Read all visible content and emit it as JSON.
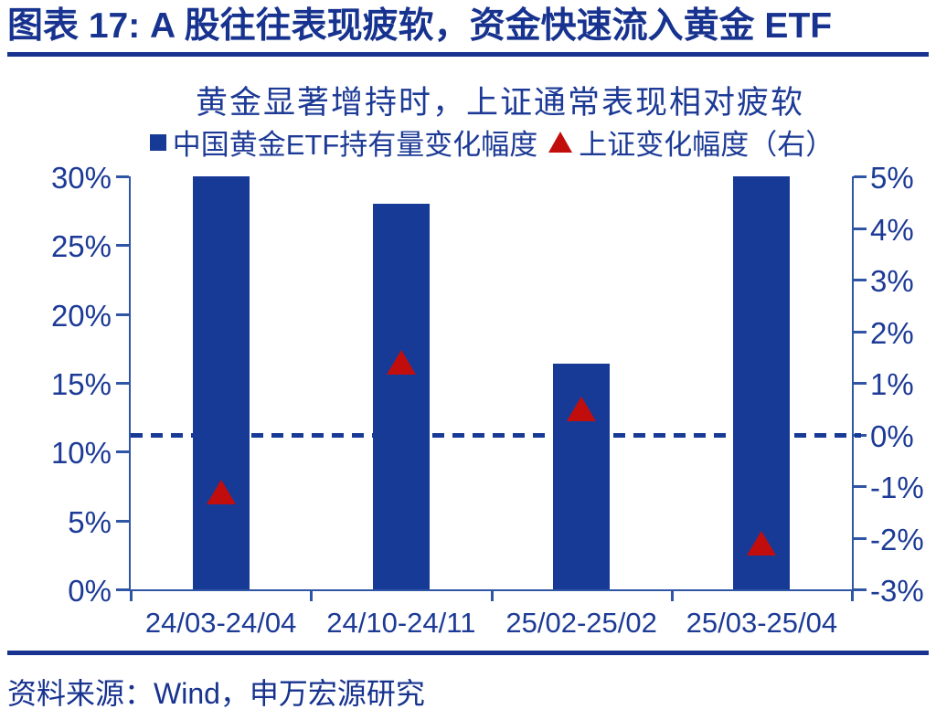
{
  "header": {
    "title": "图表 17: A 股往往表现疲软，资金快速流入黄金 ETF"
  },
  "chart_data": {
    "type": "bar",
    "title": "黄金显著增持时，上证通常表现相对疲软",
    "categories": [
      "24/03-24/04",
      "24/10-24/11",
      "25/02-25/02",
      "25/03-25/04"
    ],
    "series": [
      {
        "name": "中国黄金ETF持有量变化幅度",
        "type": "bar",
        "axis": "left",
        "marker": "square-icon",
        "values": [
          30,
          28,
          16.4,
          30
        ]
      },
      {
        "name": "上证变化幅度（右）",
        "type": "scatter",
        "axis": "right",
        "marker": "triangle-icon",
        "values": [
          -1.1,
          1.4,
          0.5,
          -2.1
        ]
      }
    ],
    "left_axis": {
      "min": 0,
      "max": 30,
      "step": 5,
      "tick_labels": [
        "0%",
        "5%",
        "10%",
        "15%",
        "20%",
        "25%",
        "30%"
      ]
    },
    "right_axis": {
      "min": -3,
      "max": 5,
      "step": 1,
      "tick_labels": [
        "-3%",
        "-2%",
        "-1%",
        "0%",
        "1%",
        "2%",
        "3%",
        "4%",
        "5%"
      ]
    },
    "zero_line": {
      "axis": "right",
      "value": 0,
      "style": "dashed"
    },
    "grid": false,
    "legend_position": "top"
  },
  "footer": {
    "source": "资料来源：Wind，申万宏源研究"
  },
  "colors": {
    "bar": "#173A96",
    "triangle": "#C20D0D",
    "text": "#1C3A96",
    "heading": "#17338F",
    "axis": "#2F55A5"
  }
}
